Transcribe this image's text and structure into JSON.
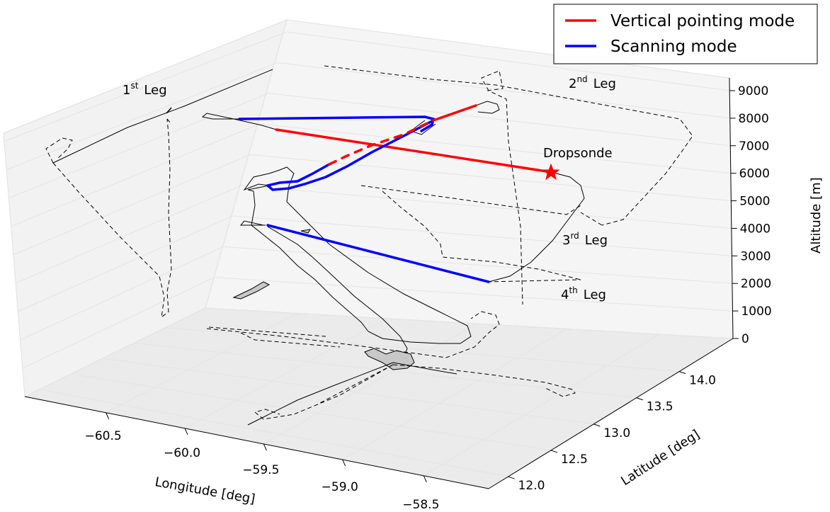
{
  "chart_data": {
    "type": "line3d",
    "xlabel": "Longitude [deg]",
    "ylabel": "Latitude [deg]",
    "zlabel": "Altitude [m]",
    "xticks": [
      "−60.5",
      "−60.0",
      "−59.5",
      "−59.0",
      "−58.5"
    ],
    "yticks": [
      "12.0",
      "12.5",
      "13.0",
      "13.5",
      "14.0"
    ],
    "zticks": [
      "0",
      "1000",
      "2000",
      "3000",
      "4000",
      "5000",
      "6000",
      "7000",
      "8000",
      "9000"
    ],
    "legend": {
      "position": "top-right",
      "entries": [
        {
          "label": "Vertical pointing mode",
          "color": "#ff0000"
        },
        {
          "label": "Scanning mode",
          "color": "#0000ff"
        }
      ]
    },
    "annotations": {
      "leg1": {
        "num": "1",
        "sup": "st",
        "word": "Leg"
      },
      "leg2": {
        "num": "2",
        "sup": "nd",
        "word": "Leg"
      },
      "leg3": {
        "num": "3",
        "sup": "rd",
        "word": "Leg"
      },
      "leg4": {
        "num": "4",
        "sup": "th",
        "word": "Leg"
      },
      "dropsonde": "Dropsonde"
    },
    "colors": {
      "vertical": "#ff0000",
      "scanning": "#0000ff",
      "track": "#000000"
    },
    "grid": true
  }
}
